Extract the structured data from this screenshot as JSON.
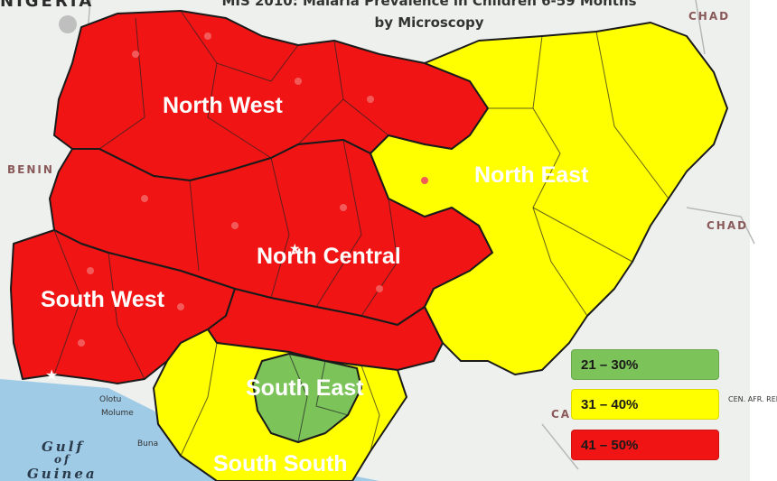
{
  "map": {
    "title_line1": "MIS 2010: Malaria Prevalence in Children 6-59 Months",
    "title_line2": "by Microscopy",
    "country_label": "NIGERIA",
    "neighbors": {
      "benin": "BENIN",
      "chad_top": "CHAD",
      "chad_right": "CHAD",
      "cam": "CA",
      "car": "CEN. AFR. REP."
    },
    "sea_line1": "Gulf",
    "sea_line2": "of",
    "sea_line3": "Guinea",
    "places": {
      "olotu": "Olotu",
      "molume": "Molume",
      "buna": "Buna"
    }
  },
  "regions": [
    {
      "name": "North West",
      "prevalence_band": "41 – 50%",
      "color": "#f01414"
    },
    {
      "name": "North East",
      "prevalence_band": "31 – 40%",
      "color": "#ffff00"
    },
    {
      "name": "North Central",
      "prevalence_band": "41 – 50%",
      "color": "#f01414"
    },
    {
      "name": "South West",
      "prevalence_band": "41 – 50%",
      "color": "#f01414"
    },
    {
      "name": "South East",
      "prevalence_band": "21 – 30%",
      "color": "#7cc35a"
    },
    {
      "name": "South South",
      "prevalence_band": "31 – 40%",
      "color": "#ffff00"
    }
  ],
  "legend": [
    {
      "label": "21 – 30%",
      "color": "#7cc35a"
    },
    {
      "label": "31 – 40%",
      "color": "#ffff00"
    },
    {
      "label": "41 – 50%",
      "color": "#f01414"
    }
  ],
  "colors": {
    "water": "#9fcbe6",
    "land_other": "#eef0ee",
    "border": "#1a1a1a"
  }
}
